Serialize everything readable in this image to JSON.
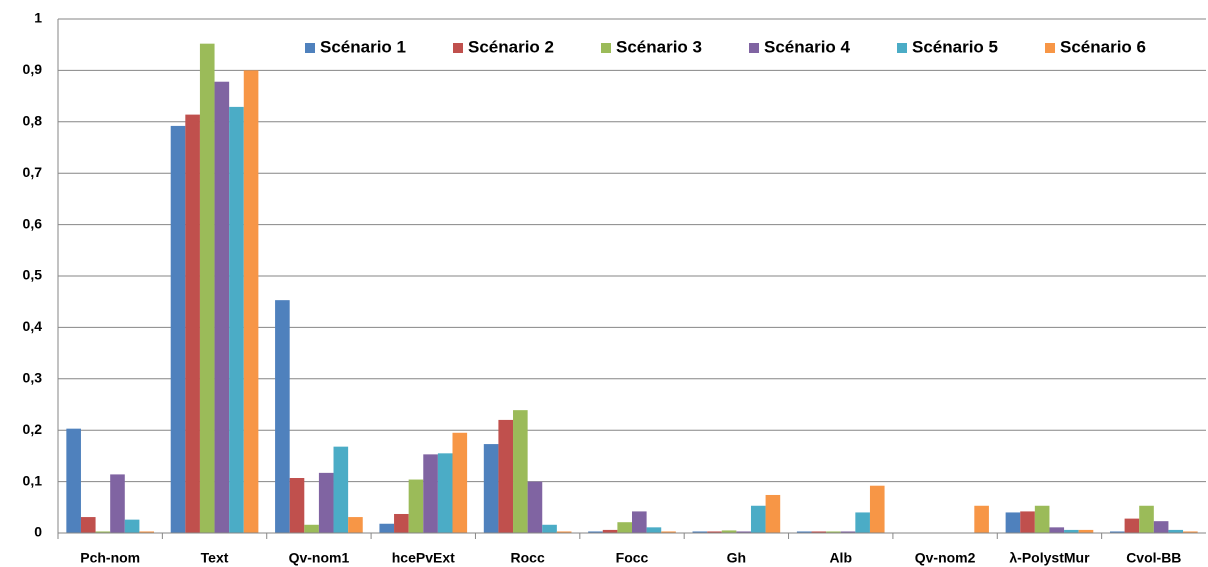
{
  "chart_data": {
    "type": "bar",
    "categories": [
      "Pch-nom",
      "Text",
      "Qv-nom1",
      "hcePvExt",
      "Rocc",
      "Focc",
      "Gh",
      "Alb",
      "Qv-nom2",
      "λ-PolystMur",
      "Cvol-BB"
    ],
    "series": [
      {
        "name": "Scénario 1",
        "color": "#4f81bd",
        "values": [
          0.203,
          0.792,
          0.453,
          0.018,
          0.173,
          0.003,
          0.003,
          0.003,
          0,
          0.04,
          0.003
        ]
      },
      {
        "name": "Scénario 2",
        "color": "#c0504d",
        "values": [
          0.031,
          0.814,
          0.107,
          0.037,
          0.22,
          0.006,
          0.003,
          0.003,
          0,
          0.042,
          0.028
        ]
      },
      {
        "name": "Scénario 3",
        "color": "#9bbb59",
        "values": [
          0.003,
          0.952,
          0.016,
          0.104,
          0.239,
          0.021,
          0.005,
          0.003,
          0,
          0.053,
          0.053
        ]
      },
      {
        "name": "Scénario 4",
        "color": "#8064a2",
        "values": [
          0.114,
          0.878,
          0.117,
          0.153,
          0.1,
          0.042,
          0.003,
          0.003,
          0,
          0.011,
          0.023
        ]
      },
      {
        "name": "Scénario 5",
        "color": "#4bacc6",
        "values": [
          0.026,
          0.829,
          0.168,
          0.155,
          0.016,
          0.011,
          0.053,
          0.04,
          0,
          0.006,
          0.006
        ]
      },
      {
        "name": "Scénario 6",
        "color": "#f79646",
        "values": [
          0.003,
          0.9,
          0.031,
          0.195,
          0.003,
          0.003,
          0.074,
          0.092,
          0.053,
          0.006,
          0.003
        ]
      }
    ],
    "ylim": [
      0,
      1
    ],
    "yticks": [
      0,
      {
        "value": 0.1,
        "label": "0,1"
      },
      {
        "value": 0.2,
        "label": "0,2"
      },
      {
        "value": 0.3,
        "label": "0,3"
      },
      {
        "value": 0.4,
        "label": "0,4"
      },
      {
        "value": 0.5,
        "label": "0,5"
      },
      {
        "value": 0.6,
        "label": "0,6"
      },
      {
        "value": 0.7,
        "label": "0,7"
      },
      {
        "value": 0.8,
        "label": "0,8"
      },
      {
        "value": 0.9,
        "label": "0,9"
      },
      1
    ],
    "grid": true,
    "legend": "top"
  }
}
